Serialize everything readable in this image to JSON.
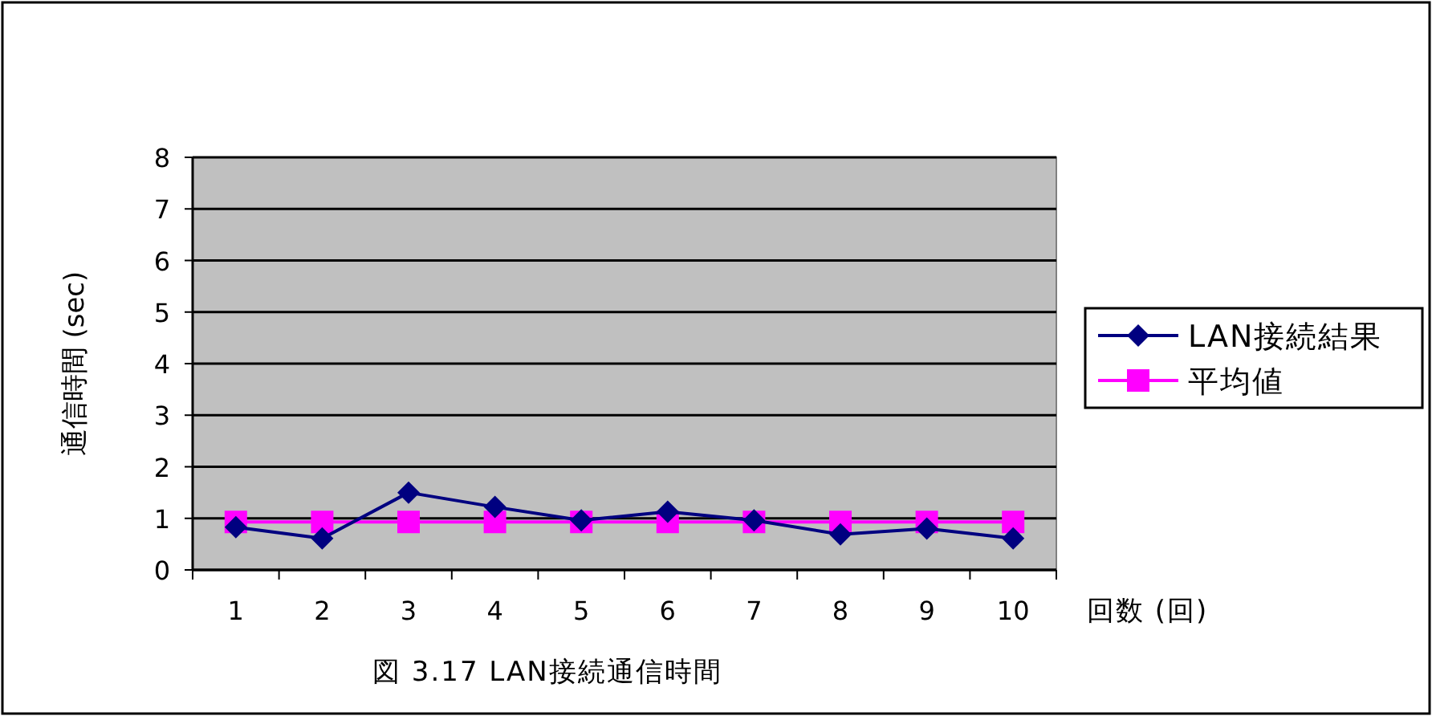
{
  "chart_data": {
    "type": "line",
    "title": "図 3.17  LAN接続通信時間",
    "xlabel": "回数 (回)",
    "ylabel": "通信時間 (sec)",
    "categories": [
      "1",
      "2",
      "3",
      "4",
      "5",
      "6",
      "7",
      "8",
      "9",
      "10"
    ],
    "series": [
      {
        "name": "LAN接続結果",
        "color": "#000080",
        "marker": "diamond",
        "values": [
          0.83,
          0.61,
          1.5,
          1.22,
          0.96,
          1.13,
          0.96,
          0.69,
          0.8,
          0.61
        ]
      },
      {
        "name": "平均値",
        "color": "#ff00ff",
        "marker": "square",
        "values": [
          0.93,
          0.93,
          0.93,
          0.93,
          0.93,
          0.93,
          0.93,
          0.93,
          0.93,
          0.93
        ]
      }
    ],
    "ylim": [
      0,
      8
    ],
    "yticks": [
      0,
      1,
      2,
      3,
      4,
      5,
      6,
      7,
      8
    ],
    "grid": "y",
    "legend": "right"
  }
}
